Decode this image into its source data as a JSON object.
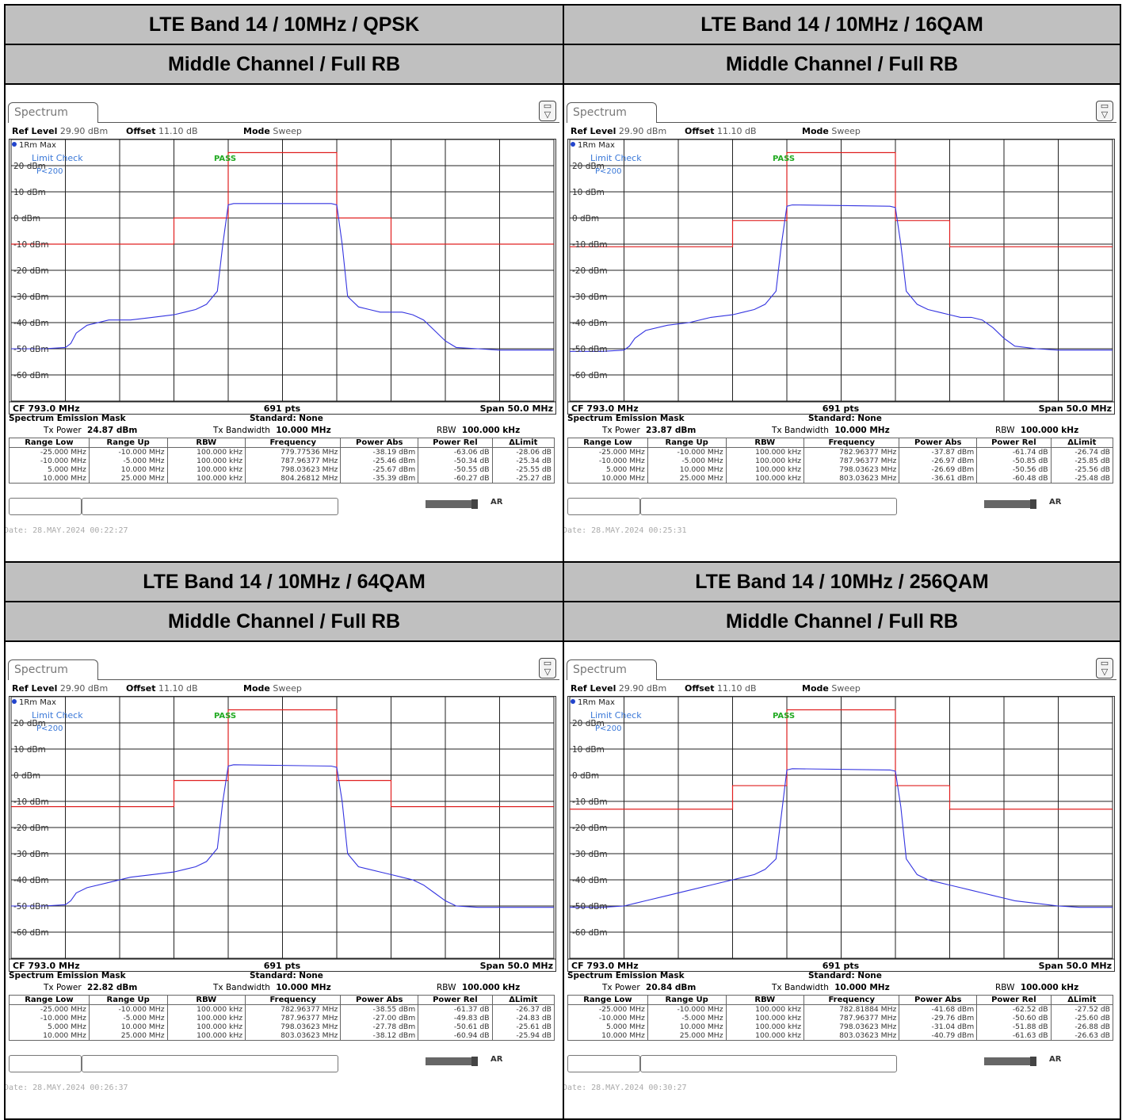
{
  "colors": {
    "trace": "#3434e0",
    "limit": "#e02020",
    "limit_check": "#3a78d8",
    "pass": "#22aa22",
    "header_bg": "#c0c0c0"
  },
  "icons": {
    "setup": "display-config-icon"
  },
  "panels": [
    {
      "title": "LTE Band 14 / 10MHz / QPSK",
      "subtitle": "Middle Channel / Full RB",
      "tab": "Spectrum",
      "ref_level": "29.90 dBm",
      "offset": "11.10 dB",
      "mode": "Sweep",
      "trace_label": "1Rm Max",
      "limit_check": "Limit Check",
      "limit_pass": "PASS",
      "limit_line": "P<200",
      "cf": "CF 793.0 MHz",
      "pts": "691 pts",
      "span": "Span 50.0 MHz",
      "sem_title": "Spectrum Emission Mask",
      "standard": "Standard: None",
      "tx_power": "24.87 dBm",
      "tx_bandwidth": "10.000 MHz",
      "rbw": "100.000 kHz",
      "rows": [
        [
          "-25.000 MHz",
          "-10.000 MHz",
          "100.000 kHz",
          "779.77536 MHz",
          "-38.19 dBm",
          "-63.06 dB",
          "-28.06 dB"
        ],
        [
          "-10.000 MHz",
          "-5.000 MHz",
          "100.000 kHz",
          "787.96377 MHz",
          "-25.46 dBm",
          "-50.34 dB",
          "-25.34 dB"
        ],
        [
          "5.000 MHz",
          "10.000 MHz",
          "100.000 kHz",
          "798.03623 MHz",
          "-25.67 dBm",
          "-50.55 dB",
          "-25.55 dB"
        ],
        [
          "10.000 MHz",
          "25.000 MHz",
          "100.000 kHz",
          "804.26812 MHz",
          "-35.39 dBm",
          "-60.27 dB",
          "-25.27 dB"
        ]
      ],
      "date": "Date: 28.MAY.2024  00:22:27"
    },
    {
      "title": "LTE Band 14 / 10MHz / 16QAM",
      "subtitle": "Middle Channel / Full RB",
      "tab": "Spectrum",
      "ref_level": "29.90 dBm",
      "offset": "11.10 dB",
      "mode": "Sweep",
      "trace_label": "1Rm Max",
      "limit_check": "Limit Check",
      "limit_pass": "PASS",
      "limit_line": "P<200",
      "cf": "CF 793.0 MHz",
      "pts": "691 pts",
      "span": "Span 50.0 MHz",
      "sem_title": "Spectrum Emission Mask",
      "standard": "Standard: None",
      "tx_power": "23.87 dBm",
      "tx_bandwidth": "10.000 MHz",
      "rbw": "100.000 kHz",
      "rows": [
        [
          "-25.000 MHz",
          "-10.000 MHz",
          "100.000 kHz",
          "782.96377 MHz",
          "-37.87 dBm",
          "-61.74 dB",
          "-26.74 dB"
        ],
        [
          "-10.000 MHz",
          "-5.000 MHz",
          "100.000 kHz",
          "787.96377 MHz",
          "-26.97 dBm",
          "-50.85 dB",
          "-25.85 dB"
        ],
        [
          "5.000 MHz",
          "10.000 MHz",
          "100.000 kHz",
          "798.03623 MHz",
          "-26.69 dBm",
          "-50.56 dB",
          "-25.56 dB"
        ],
        [
          "10.000 MHz",
          "25.000 MHz",
          "100.000 kHz",
          "803.03623 MHz",
          "-36.61 dBm",
          "-60.48 dB",
          "-25.48 dB"
        ]
      ],
      "date": "Date: 28.MAY.2024  00:25:31"
    },
    {
      "title": "LTE Band 14 / 10MHz / 64QAM",
      "subtitle": "Middle Channel / Full RB",
      "tab": "Spectrum",
      "ref_level": "29.90 dBm",
      "offset": "11.10 dB",
      "mode": "Sweep",
      "trace_label": "1Rm Max",
      "limit_check": "Limit Check",
      "limit_pass": "PASS",
      "limit_line": "P<200",
      "cf": "CF 793.0 MHz",
      "pts": "691 pts",
      "span": "Span 50.0 MHz",
      "sem_title": "Spectrum Emission Mask",
      "standard": "Standard: None",
      "tx_power": "22.82 dBm",
      "tx_bandwidth": "10.000 MHz",
      "rbw": "100.000 kHz",
      "rows": [
        [
          "-25.000 MHz",
          "-10.000 MHz",
          "100.000 kHz",
          "782.96377 MHz",
          "-38.55 dBm",
          "-61.37 dB",
          "-26.37 dB"
        ],
        [
          "-10.000 MHz",
          "-5.000 MHz",
          "100.000 kHz",
          "787.96377 MHz",
          "-27.00 dBm",
          "-49.83 dB",
          "-24.83 dB"
        ],
        [
          "5.000 MHz",
          "10.000 MHz",
          "100.000 kHz",
          "798.03623 MHz",
          "-27.78 dBm",
          "-50.61 dB",
          "-25.61 dB"
        ],
        [
          "10.000 MHz",
          "25.000 MHz",
          "100.000 kHz",
          "803.03623 MHz",
          "-38.12 dBm",
          "-60.94 dB",
          "-25.94 dB"
        ]
      ],
      "date": "Date: 28.MAY.2024  00:26:37"
    },
    {
      "title": "LTE Band 14 / 10MHz / 256QAM",
      "subtitle": "Middle Channel / Full RB",
      "tab": "Spectrum",
      "ref_level": "29.90 dBm",
      "offset": "11.10 dB",
      "mode": "Sweep",
      "trace_label": "1Rm Max",
      "limit_check": "Limit Check",
      "limit_pass": "PASS",
      "limit_line": "P<200",
      "cf": "CF 793.0 MHz",
      "pts": "691 pts",
      "span": "Span 50.0 MHz",
      "sem_title": "Spectrum Emission Mask",
      "standard": "Standard: None",
      "tx_power": "20.84 dBm",
      "tx_bandwidth": "10.000 MHz",
      "rbw": "100.000 kHz",
      "rows": [
        [
          "-25.000 MHz",
          "-10.000 MHz",
          "100.000 kHz",
          "782.81884 MHz",
          "-41.68 dBm",
          "-62.52 dB",
          "-27.52 dB"
        ],
        [
          "-10.000 MHz",
          "-5.000 MHz",
          "100.000 kHz",
          "787.96377 MHz",
          "-29.76 dBm",
          "-50.60 dB",
          "-25.60 dB"
        ],
        [
          "5.000 MHz",
          "10.000 MHz",
          "100.000 kHz",
          "798.03623 MHz",
          "-31.04 dBm",
          "-51.88 dB",
          "-26.88 dB"
        ],
        [
          "10.000 MHz",
          "25.000 MHz",
          "100.000 kHz",
          "803.03623 MHz",
          "-40.79 dBm",
          "-61.63 dB",
          "-26.63 dB"
        ]
      ],
      "date": "Date: 28.MAY.2024  00:30:27"
    }
  ],
  "table_headers": [
    "Range Low",
    "Range Up",
    "RBW",
    "Frequency",
    "Power Abs",
    "Power Rel",
    "ΔLimit"
  ],
  "tx_power_label": "Tx Power",
  "tx_bandwidth_label": "Tx Bandwidth",
  "rbw_label": "RBW",
  "ref_level_label": "Ref Level",
  "offset_label": "Offset",
  "mode_label": "Mode",
  "chart_data": [
    {
      "type": "line",
      "title": "",
      "x": [
        -25,
        -22,
        -20,
        -19.5,
        -19,
        -18,
        -16,
        -14,
        -12,
        -10,
        -9,
        -8,
        -7,
        -6,
        -5.5,
        -5,
        -4.5,
        4.5,
        5,
        5.5,
        6,
        7,
        8,
        9,
        10,
        11,
        12,
        13,
        14,
        15,
        16,
        18,
        20,
        22,
        25
      ],
      "xlim": [
        -25,
        25
      ],
      "xunit": "MHz offset from CF 793.0 MHz",
      "ylim": [
        -70,
        30
      ],
      "yticks": [
        "20 dBm",
        "10 dBm",
        "0 dBm",
        "-10 dBm",
        "-20 dBm",
        "-30 dBm",
        "-40 dBm",
        "-50 dBm",
        "-60 dBm"
      ],
      "series": [
        {
          "values": [
            -50,
            -50,
            -49.5,
            -48,
            -44,
            -41,
            -39,
            -39,
            -38,
            -37,
            -36,
            -35,
            -33,
            -28,
            -10,
            5,
            5.5,
            5.5,
            5,
            -10,
            -30,
            -34,
            -35,
            -36,
            -36,
            -36,
            -37,
            -39,
            -43,
            -47,
            -49.5,
            -50,
            -50.5,
            -50.5,
            -50.5
          ]
        }
      ],
      "limit_line": [
        [
          -25,
          -10
        ],
        [
          -10,
          -10
        ],
        [
          -10,
          0
        ],
        [
          -5,
          0
        ],
        [
          -5,
          25
        ],
        [
          5,
          25
        ],
        [
          5,
          0
        ],
        [
          10,
          0
        ],
        [
          10,
          -10
        ],
        [
          25,
          -10
        ]
      ]
    },
    {
      "type": "line",
      "title": "",
      "x": [
        -25,
        -22,
        -20,
        -19.5,
        -19,
        -18,
        -16,
        -14,
        -12,
        -10,
        -9,
        -8,
        -7,
        -6,
        -5.5,
        -5,
        -4.5,
        4.5,
        5,
        5.5,
        6,
        7,
        8,
        9,
        10,
        11,
        12,
        13,
        14,
        15,
        16,
        18,
        20,
        22,
        25
      ],
      "xlim": [
        -25,
        25
      ],
      "xunit": "MHz offset from CF 793.0 MHz",
      "ylim": [
        -70,
        30
      ],
      "yticks": [
        "20 dBm",
        "10 dBm",
        "0 dBm",
        "-10 dBm",
        "-20 dBm",
        "-30 dBm",
        "-40 dBm",
        "-50 dBm",
        "-60 dBm"
      ],
      "series": [
        {
          "values": [
            -51,
            -51,
            -50.5,
            -49,
            -46,
            -43,
            -41,
            -40,
            -38,
            -37,
            -36,
            -35,
            -33,
            -28,
            -10,
            4.5,
            5,
            4.5,
            4,
            -10,
            -28,
            -33,
            -35,
            -36,
            -37,
            -38,
            -38,
            -39,
            -42,
            -46,
            -49,
            -50,
            -50.5,
            -50.5,
            -50.5
          ]
        }
      ],
      "limit_line": [
        [
          -25,
          -11
        ],
        [
          -10,
          -11
        ],
        [
          -10,
          -1
        ],
        [
          -5,
          -1
        ],
        [
          -5,
          25
        ],
        [
          5,
          25
        ],
        [
          5,
          -1
        ],
        [
          10,
          -1
        ],
        [
          10,
          -11
        ],
        [
          25,
          -11
        ]
      ]
    },
    {
      "type": "line",
      "title": "",
      "x": [
        -25,
        -22,
        -20,
        -19.5,
        -19,
        -18,
        -16,
        -14,
        -12,
        -10,
        -9,
        -8,
        -7,
        -6,
        -5.5,
        -5,
        -4.5,
        4.5,
        5,
        5.5,
        6,
        7,
        8,
        9,
        10,
        11,
        12,
        13,
        14,
        15,
        16,
        18,
        20,
        22,
        25
      ],
      "xlim": [
        -25,
        25
      ],
      "xunit": "MHz offset from CF 793.0 MHz",
      "ylim": [
        -70,
        30
      ],
      "yticks": [
        "20 dBm",
        "10 dBm",
        "0 dBm",
        "-10 dBm",
        "-20 dBm",
        "-30 dBm",
        "-40 dBm",
        "-50 dBm",
        "-60 dBm"
      ],
      "series": [
        {
          "values": [
            -50,
            -50,
            -49.5,
            -48,
            -45,
            -43,
            -41,
            -39,
            -38,
            -37,
            -36,
            -35,
            -33,
            -28,
            -10,
            3.5,
            4,
            3.5,
            3,
            -10,
            -30,
            -35,
            -36,
            -37,
            -38,
            -39,
            -40,
            -42,
            -45,
            -48,
            -50,
            -50.5,
            -50.5,
            -50.5,
            -50.5
          ]
        }
      ],
      "limit_line": [
        [
          -25,
          -12
        ],
        [
          -10,
          -12
        ],
        [
          -10,
          -2
        ],
        [
          -5,
          -2
        ],
        [
          -5,
          25
        ],
        [
          5,
          25
        ],
        [
          5,
          -2
        ],
        [
          10,
          -2
        ],
        [
          10,
          -12
        ],
        [
          25,
          -12
        ]
      ]
    },
    {
      "type": "line",
      "title": "",
      "x": [
        -25,
        -22,
        -20,
        -19.5,
        -19,
        -18,
        -16,
        -14,
        -12,
        -10,
        -9,
        -8,
        -7,
        -6,
        -5.5,
        -5,
        -4.5,
        4.5,
        5,
        5.5,
        6,
        7,
        8,
        9,
        10,
        11,
        12,
        13,
        14,
        15,
        16,
        18,
        20,
        22,
        25
      ],
      "xlim": [
        -25,
        25
      ],
      "xunit": "MHz offset from CF 793.0 MHz",
      "ylim": [
        -70,
        30
      ],
      "yticks": [
        "20 dBm",
        "10 dBm",
        "0 dBm",
        "-10 dBm",
        "-20 dBm",
        "-30 dBm",
        "-40 dBm",
        "-50 dBm",
        "-60 dBm"
      ],
      "series": [
        {
          "values": [
            -50.5,
            -50.5,
            -50,
            -49.5,
            -49,
            -48,
            -46,
            -44,
            -42,
            -40,
            -39,
            -38,
            -36,
            -32,
            -15,
            2,
            2.5,
            2,
            1.5,
            -12,
            -32,
            -38,
            -40,
            -41,
            -42,
            -43,
            -44,
            -45,
            -46,
            -47,
            -48,
            -49,
            -50,
            -50.5,
            -50.5
          ]
        }
      ],
      "limit_line": [
        [
          -25,
          -13
        ],
        [
          -10,
          -13
        ],
        [
          -10,
          -4
        ],
        [
          -5,
          -4
        ],
        [
          -5,
          25
        ],
        [
          5,
          25
        ],
        [
          5,
          -4
        ],
        [
          10,
          -4
        ],
        [
          10,
          -13
        ],
        [
          25,
          -13
        ]
      ]
    }
  ]
}
